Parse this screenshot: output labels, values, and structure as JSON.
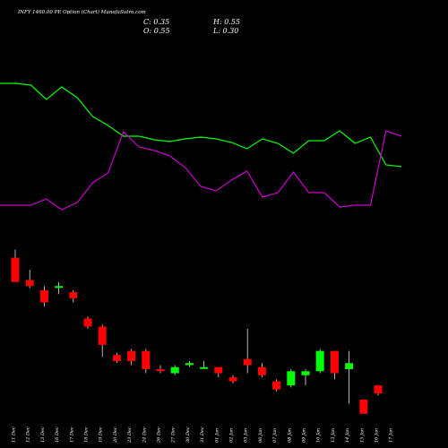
{
  "header": {
    "title": "INFY 1460.00 PE Option  (Chart) MunafaSutra.com",
    "close_label": "C: 0.35",
    "open_label": "O: 0.55",
    "high_label": "H: 0.55",
    "low_label": "L: 0.30"
  },
  "chart_data": {
    "type": "candlestick",
    "title": "INFY 1460.00 PE Option  (Chart) MunafaSutra.com",
    "x_labels": [
      "11 Dec",
      "12 Dec",
      "13 Dec",
      "16 Dec",
      "17 Dec",
      "18 Dec",
      "19 Dec",
      "20 Dec",
      "23 Dec",
      "24 Dec",
      "26 Dec",
      "27 Dec",
      "30 Dec",
      "31 Dec",
      "01 Jan",
      "02 Jan",
      "03 Jan",
      "06 Jan",
      "07 Jan",
      "08 Jan",
      "09 Jan",
      "10 Jan",
      "13 Jan",
      "14 Jan",
      "15 Jan",
      "16 Jan",
      "17 Jan"
    ],
    "y_range": [
      0.0,
      4.2
    ],
    "candles": [
      {
        "date": "11 Dec",
        "open": 3.7,
        "high": 3.9,
        "low": 3.1,
        "close": 3.1
      },
      {
        "date": "12 Dec",
        "open": 3.15,
        "high": 3.4,
        "low": 2.95,
        "close": 3.0
      },
      {
        "date": "13 Dec",
        "open": 2.9,
        "high": 3.0,
        "low": 2.5,
        "close": 2.6
      },
      {
        "date": "16 Dec",
        "open": 3.0,
        "high": 3.1,
        "low": 2.8,
        "close": 3.0
      },
      {
        "date": "17 Dec",
        "open": 2.85,
        "high": 2.9,
        "low": 2.6,
        "close": 2.7
      },
      {
        "date": "18 Dec",
        "open": 2.2,
        "high": 2.25,
        "low": 1.95,
        "close": 2.0
      },
      {
        "date": "19 Dec",
        "open": 2.0,
        "high": 2.05,
        "low": 1.25,
        "close": 1.55
      },
      {
        "date": "20 Dec",
        "open": 1.3,
        "high": 1.35,
        "low": 1.1,
        "close": 1.15
      },
      {
        "date": "23 Dec",
        "open": 1.4,
        "high": 1.45,
        "low": 1.05,
        "close": 1.15
      },
      {
        "date": "24 Dec",
        "open": 1.4,
        "high": 1.45,
        "low": 0.85,
        "close": 0.95
      },
      {
        "date": "26 Dec",
        "open": 0.95,
        "high": 1.05,
        "low": 0.85,
        "close": 0.9
      },
      {
        "date": "27 Dec",
        "open": 0.85,
        "high": 1.05,
        "low": 0.8,
        "close": 1.0
      },
      {
        "date": "30 Dec",
        "open": 1.05,
        "high": 1.15,
        "low": 1.0,
        "close": 1.1
      },
      {
        "date": "31 Dec",
        "open": 1.0,
        "high": 1.15,
        "low": 0.95,
        "close": 1.0
      },
      {
        "date": "01 Jan",
        "open": 1.0,
        "high": 1.0,
        "low": 0.75,
        "close": 0.85
      },
      {
        "date": "02 Jan",
        "open": 0.75,
        "high": 0.8,
        "low": 0.6,
        "close": 0.65
      },
      {
        "date": "03 Jan",
        "open": 1.2,
        "high": 1.95,
        "low": 0.85,
        "close": 1.05
      },
      {
        "date": "06 Jan",
        "open": 1.0,
        "high": 1.1,
        "low": 0.75,
        "close": 0.8
      },
      {
        "date": "07 Jan",
        "open": 0.65,
        "high": 0.7,
        "low": 0.4,
        "close": 0.45
      },
      {
        "date": "08 Jan",
        "open": 0.55,
        "high": 0.95,
        "low": 0.5,
        "close": 0.9
      },
      {
        "date": "09 Jan",
        "open": 0.8,
        "high": 0.95,
        "low": 0.55,
        "close": 0.9
      },
      {
        "date": "10 Jan",
        "open": 0.9,
        "high": 1.45,
        "low": 0.85,
        "close": 1.4
      },
      {
        "date": "13 Jan",
        "open": 1.4,
        "high": 1.4,
        "low": 0.7,
        "close": 0.85
      },
      {
        "date": "14 Jan",
        "open": 0.95,
        "high": 1.4,
        "low": 0.1,
        "close": 1.1
      },
      {
        "date": "15 Jan",
        "open": 0.2,
        "high": 0.2,
        "low": -0.15,
        "close": -0.15
      },
      {
        "date": "16 Jan",
        "open": 0.55,
        "high": 0.55,
        "low": 0.3,
        "close": 0.35
      }
    ],
    "indicator_lines": [
      {
        "color": "#00ff00",
        "values": [
          93,
          93,
          95,
          111,
          97,
          109,
          130,
          140,
          152,
          152,
          156,
          158,
          155,
          153,
          155,
          159,
          166,
          155,
          160,
          171,
          157,
          157,
          146,
          160,
          153,
          184,
          186
        ]
      },
      {
        "color": "#cc00cc",
        "values": [
          229,
          229,
          229,
          222,
          234,
          226,
          204,
          193,
          147,
          164,
          168,
          174,
          187,
          208,
          213,
          201,
          191,
          220,
          215,
          192,
          215,
          215,
          231,
          229,
          229,
          146,
          152
        ]
      }
    ],
    "indicator_range": [
      0,
      300
    ],
    "grid": false
  }
}
